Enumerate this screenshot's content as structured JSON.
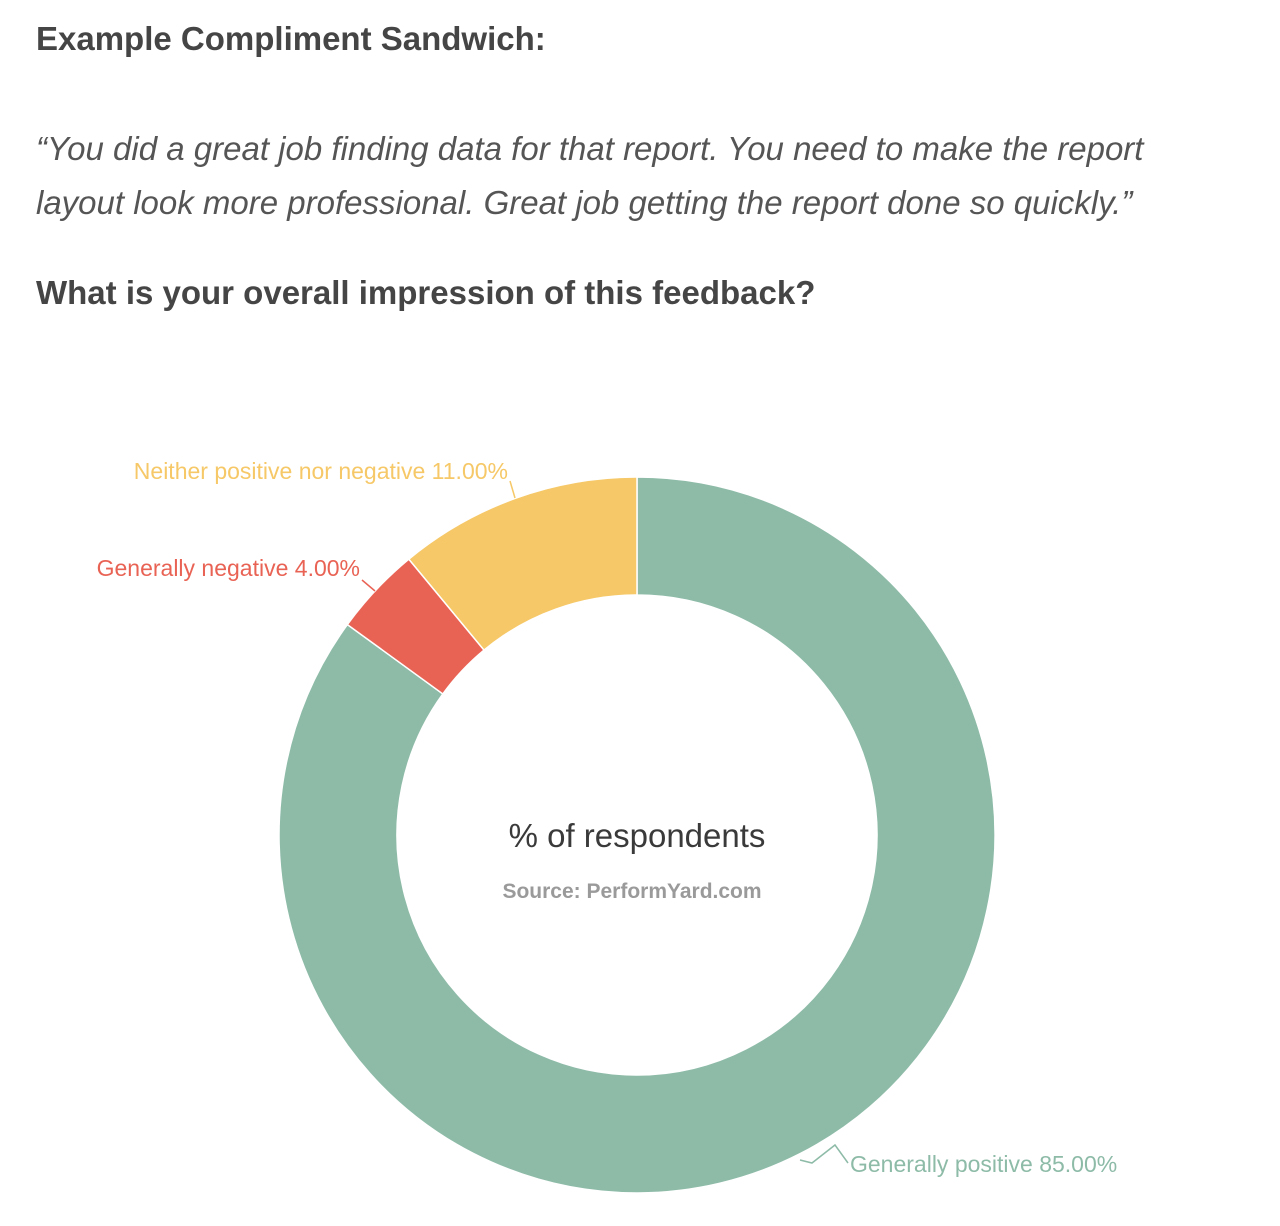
{
  "content": {
    "intro_heading": "Example Compliment Sandwich:",
    "quote_lines": [
      "“You did a great job finding data for that report. You need to make the report",
      "layout look more professional. Great job getting the report done so quickly.”"
    ],
    "question": "What is your overall impression of this feedback?"
  },
  "chart_data": {
    "type": "pie",
    "donut": true,
    "title": "% of respondents",
    "subtitle": "Source: PerformYard.com",
    "slices": [
      {
        "name": "Generally positive",
        "value": 85.0,
        "label": "Generally positive 85.00%",
        "color": "#8dbba8"
      },
      {
        "name": "Generally negative",
        "value": 4.0,
        "label": "Generally negative 4.00%",
        "color": "#e96355"
      },
      {
        "name": "Neither positive nor negative",
        "value": 11.0,
        "label": "Neither positive nor negative 11.00%",
        "color": "#f6c867"
      }
    ],
    "legend": "none"
  }
}
